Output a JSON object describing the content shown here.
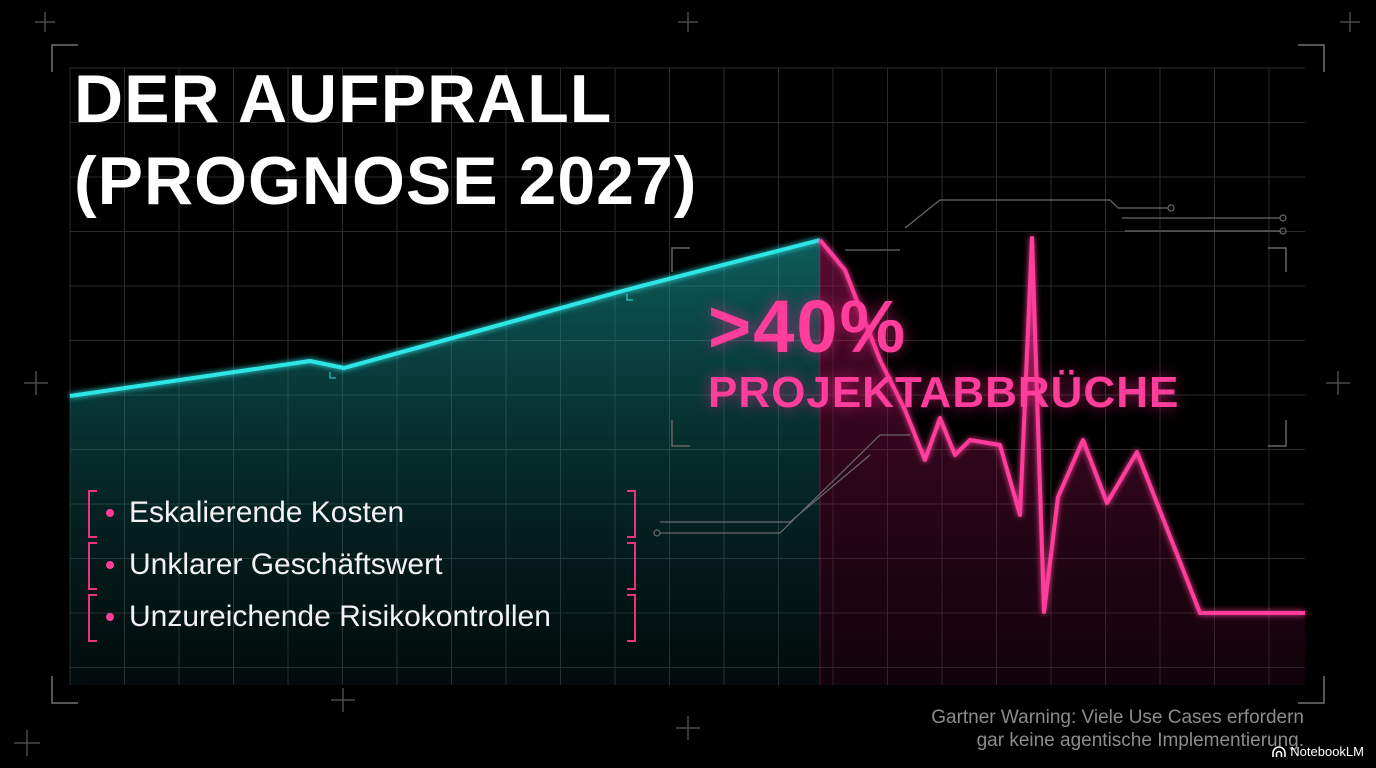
{
  "title": {
    "line1": "DER AUFPRALL",
    "line2": "(PROGNOSE 2027)"
  },
  "highlight": {
    "value": ">40%",
    "label": "PROJEKTABBRÜCHE"
  },
  "bullets": [
    "Eskalierende Kosten",
    "Unklarer Geschäftswert",
    "Unzureichende Risikokontrollen"
  ],
  "footnote": {
    "line1": "Gartner Warning: Viele Use Cases erfordern",
    "line2": "gar keine agentische Implementierung."
  },
  "brand": "NotebookLM",
  "colors": {
    "background": "#000000",
    "growth_line": "#2ee6e6",
    "crash_line": "#ff3d9a",
    "text": "#ffffff",
    "muted": "#8c8c8c"
  },
  "icons": {
    "brand": "notebooklm-logo-icon",
    "bullet": "pink-dot-icon"
  }
}
